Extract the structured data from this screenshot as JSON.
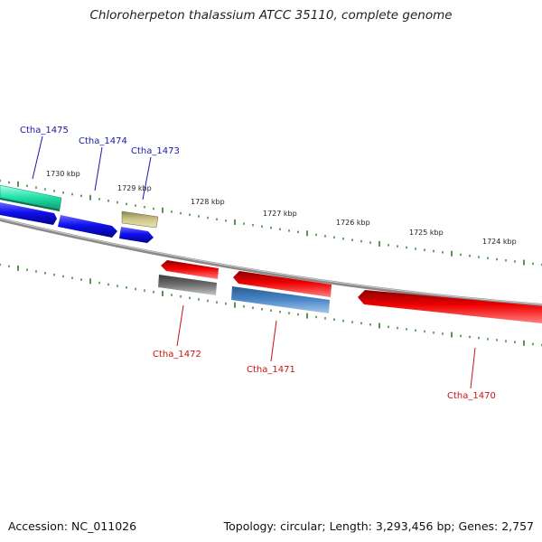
{
  "title": "Chloroherpeton thalassium ATCC 35110, complete genome",
  "footer": {
    "accession": "Accession: NC_011026",
    "stats": "Topology: circular; Length: 3,293,456 bp; Genes: 2,757"
  },
  "colors": {
    "forward_label": "#1a1aa8",
    "reverse_label": "#cc1111",
    "backbone": "#8a8a8a",
    "ticks": "#2a7a2a"
  },
  "scale_labels": [
    "1730 kbp",
    "1729 kbp",
    "1728 kbp",
    "1727 kbp",
    "1726 kbp",
    "1725 kbp",
    "1724 kbp"
  ],
  "genes_forward": [
    {
      "label": "Ctha_1475"
    },
    {
      "label": "Ctha_1474"
    },
    {
      "label": "Ctha_1473"
    }
  ],
  "genes_reverse": [
    {
      "label": "Ctha_1472"
    },
    {
      "label": "Ctha_1471"
    },
    {
      "label": "Ctha_1470"
    }
  ]
}
